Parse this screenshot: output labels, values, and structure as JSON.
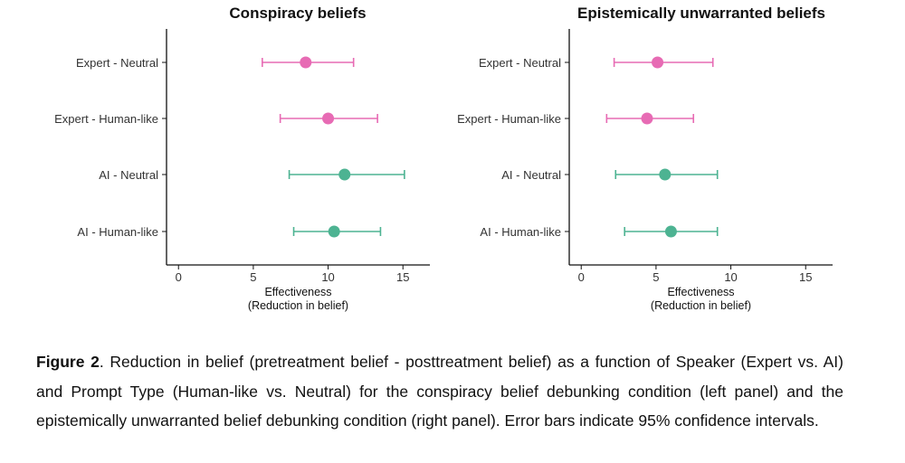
{
  "chart_data": [
    {
      "type": "scatter",
      "title": "Conspiracy beliefs",
      "xlabel_line1": "Effectiveness",
      "xlabel_line2": "(Reduction in belief)",
      "xlim": [
        -0.8,
        16.8
      ],
      "xticks": [
        0,
        5,
        10,
        15
      ],
      "categories": [
        "Expert - Neutral",
        "Expert - Human-like",
        "AI - Neutral",
        "AI - Human-like"
      ],
      "points": [
        {
          "label": "Expert - Neutral",
          "estimate": 8.5,
          "ci": [
            5.6,
            11.7
          ],
          "color": "#e76bb4"
        },
        {
          "label": "Expert - Human-like",
          "estimate": 10.0,
          "ci": [
            6.8,
            13.3
          ],
          "color": "#e76bb4"
        },
        {
          "label": "AI - Neutral",
          "estimate": 11.1,
          "ci": [
            7.4,
            15.1
          ],
          "color": "#4db392"
        },
        {
          "label": "AI - Human-like",
          "estimate": 10.4,
          "ci": [
            7.7,
            13.5
          ],
          "color": "#4db392"
        }
      ]
    },
    {
      "type": "scatter",
      "title": "Epistemically unwarranted beliefs",
      "xlabel_line1": "Effectiveness",
      "xlabel_line2": "(Reduction in belief)",
      "xlim": [
        -0.8,
        16.8
      ],
      "xticks": [
        0,
        5,
        10,
        15
      ],
      "categories": [
        "Expert - Neutral",
        "Expert - Human-like",
        "AI - Neutral",
        "AI - Human-like"
      ],
      "points": [
        {
          "label": "Expert - Neutral",
          "estimate": 5.1,
          "ci": [
            2.2,
            8.8
          ],
          "color": "#e76bb4"
        },
        {
          "label": "Expert - Human-like",
          "estimate": 4.4,
          "ci": [
            1.7,
            7.5
          ],
          "color": "#e76bb4"
        },
        {
          "label": "AI - Neutral",
          "estimate": 5.6,
          "ci": [
            2.3,
            9.1
          ],
          "color": "#4db392"
        },
        {
          "label": "AI - Human-like",
          "estimate": 6.0,
          "ci": [
            2.9,
            9.1
          ],
          "color": "#4db392"
        }
      ]
    }
  ],
  "caption": {
    "label": "Figure 2",
    "text": ". Reduction in belief (pretreatment belief - posttreatment belief) as a function of Speaker (Expert vs. AI) and Prompt Type (Human-like vs. Neutral) for the conspiracy belief debunking condition (left panel) and the epistemically unwarranted belief debunking condition (right panel). Error bars indicate 95% confidence intervals."
  }
}
